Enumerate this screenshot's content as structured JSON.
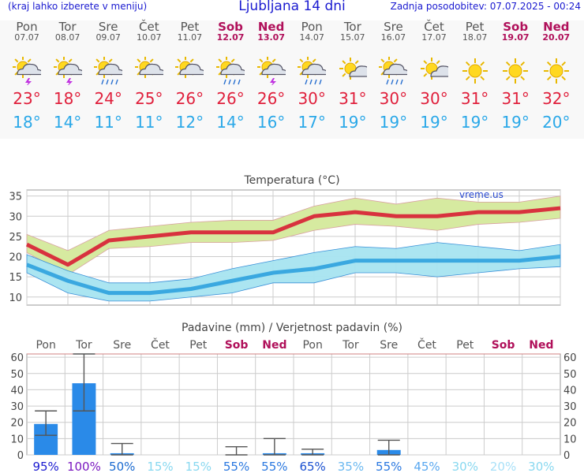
{
  "header": {
    "menu_hint": "(kraj lahko izberete v meniju)",
    "title": "Ljubljana 14 dni",
    "updated": "Zadnja posodobitev: 07.07.2025 - 00:24"
  },
  "days": [
    {
      "name": "Pon",
      "date": "07.07",
      "max": "23°",
      "min": "18°",
      "icon": "sun-cloud-thunder-icon",
      "weekend": false
    },
    {
      "name": "Tor",
      "date": "08.07",
      "max": "18°",
      "min": "14°",
      "icon": "sun-cloud-thunder-icon",
      "weekend": false
    },
    {
      "name": "Sre",
      "date": "09.07",
      "max": "24°",
      "min": "11°",
      "icon": "sun-cloud-rain-icon",
      "weekend": false
    },
    {
      "name": "Čet",
      "date": "10.07",
      "max": "25°",
      "min": "11°",
      "icon": "sun-cloud-icon",
      "weekend": false
    },
    {
      "name": "Pet",
      "date": "11.07",
      "max": "26°",
      "min": "12°",
      "icon": "sun-cloud-icon",
      "weekend": false
    },
    {
      "name": "Sob",
      "date": "12.07",
      "max": "26°",
      "min": "14°",
      "icon": "sun-cloud-rain-icon",
      "weekend": true
    },
    {
      "name": "Ned",
      "date": "13.07",
      "max": "26°",
      "min": "16°",
      "icon": "sun-cloud-thunder-icon",
      "weekend": true
    },
    {
      "name": "Pon",
      "date": "14.07",
      "max": "30°",
      "min": "17°",
      "icon": "sun-cloud-rain-icon",
      "weekend": false
    },
    {
      "name": "Tor",
      "date": "15.07",
      "max": "31°",
      "min": "19°",
      "icon": "sun-small-cloud-icon",
      "weekend": false
    },
    {
      "name": "Sre",
      "date": "16.07",
      "max": "30°",
      "min": "19°",
      "icon": "sun-cloud-rain-icon",
      "weekend": false
    },
    {
      "name": "Čet",
      "date": "17.07",
      "max": "30°",
      "min": "19°",
      "icon": "sun-small-cloud-icon",
      "weekend": false
    },
    {
      "name": "Pet",
      "date": "18.07",
      "max": "31°",
      "min": "19°",
      "icon": "sun-icon",
      "weekend": false
    },
    {
      "name": "Sob",
      "date": "19.07",
      "max": "31°",
      "min": "19°",
      "icon": "sun-icon",
      "weekend": true
    },
    {
      "name": "Ned",
      "date": "20.07",
      "max": "32°",
      "min": "20°",
      "icon": "sun-icon",
      "weekend": true
    }
  ],
  "chart_data": [
    {
      "type": "line",
      "title": "Temperatura (°C)",
      "watermark": "vreme.us",
      "x": [
        "Pon",
        "Tor",
        "Sre",
        "Čet",
        "Pet",
        "Sob",
        "Ned",
        "Pon",
        "Tor",
        "Sre",
        "Čet",
        "Pet",
        "Sob",
        "Ned"
      ],
      "yticks": [
        10,
        15,
        20,
        25,
        30,
        35
      ],
      "ylim": [
        8,
        36.5
      ],
      "series": [
        {
          "role": "max",
          "values": [
            23,
            18,
            24,
            25,
            26,
            26,
            26,
            30,
            31,
            30,
            30,
            31,
            31,
            32
          ],
          "band_low": [
            21,
            15.5,
            22,
            22.5,
            23.5,
            23.5,
            24,
            26.5,
            28,
            27.5,
            26.5,
            28,
            28.5,
            29.5
          ],
          "band_high": [
            25.5,
            21.5,
            26.5,
            27.5,
            28.5,
            29,
            29,
            32.5,
            34.5,
            33,
            34.5,
            33.5,
            33.5,
            35
          ]
        },
        {
          "role": "min",
          "values": [
            18,
            14,
            11,
            11,
            12,
            14,
            16,
            17,
            19,
            19,
            19,
            19,
            19,
            20
          ],
          "band_low": [
            16,
            11,
            9,
            9,
            10,
            11,
            13.5,
            13.5,
            16,
            16,
            15,
            16,
            17,
            17.5
          ],
          "band_high": [
            20.5,
            16.5,
            13.5,
            13.5,
            14.5,
            17,
            19,
            21,
            22.5,
            22,
            23.5,
            22.5,
            21.5,
            23
          ]
        }
      ],
      "colors": {
        "max": "#d8323e",
        "max_band": "#d6eaa0",
        "min": "#3aa8e0",
        "min_band": "#a6e4f0"
      }
    },
    {
      "type": "bar",
      "title": "Padavine (mm) / Verjetnost padavin (%)",
      "categories": [
        "Pon",
        "Tor",
        "Sre",
        "Čet",
        "Pet",
        "Sob",
        "Ned",
        "Pon",
        "Tor",
        "Sre",
        "Čet",
        "Pet",
        "Sob",
        "Ned"
      ],
      "weekend": [
        false,
        false,
        false,
        false,
        false,
        true,
        true,
        false,
        false,
        false,
        false,
        false,
        true,
        true
      ],
      "yticks": [
        0,
        10,
        20,
        30,
        40,
        50,
        60
      ],
      "ylim": [
        0,
        62
      ],
      "values": [
        19,
        44,
        1,
        0,
        0,
        0,
        1,
        1,
        0,
        3,
        0,
        0,
        0,
        0
      ],
      "err_low": [
        12,
        27,
        0,
        0,
        0,
        0,
        0,
        0,
        0,
        0,
        0,
        0,
        0,
        0
      ],
      "err_high": [
        27,
        62,
        7,
        0,
        0,
        5,
        10,
        3.5,
        0,
        9,
        0,
        0,
        0,
        0
      ],
      "probability": [
        "95%",
        "100%",
        "50%",
        "15%",
        "15%",
        "55%",
        "55%",
        "65%",
        "35%",
        "55%",
        "45%",
        "30%",
        "20%",
        "30%"
      ],
      "probability_colors": [
        "#1a1ad0",
        "#7a18c0",
        "#1a6ad0",
        "#88d8f0",
        "#88d8f0",
        "#2a78e0",
        "#2a78e0",
        "#1a50d0",
        "#6ab8f0",
        "#2a78e0",
        "#5aa8f0",
        "#88d8f0",
        "#a8e0f8",
        "#88d8f0"
      ],
      "colors": {
        "bar": "#2a8ae8",
        "err": "#555555"
      }
    }
  ]
}
